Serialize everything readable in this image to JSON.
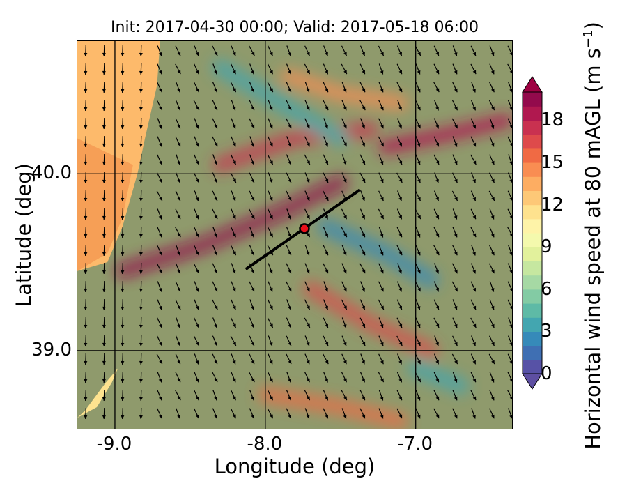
{
  "title": "Init: 2017-04-30 00:00; Valid: 2017-05-18 06:00",
  "map": {
    "xlabel": "Longitude (deg)",
    "ylabel": "Latitude (deg)",
    "xlim": [
      -9.25,
      -6.35
    ],
    "ylim": [
      38.55,
      40.75
    ],
    "x_ticks": [
      {
        "value": -9.0,
        "label": "-9.0"
      },
      {
        "value": -8.0,
        "label": "-8.0"
      },
      {
        "value": -7.0,
        "label": "-7.0"
      }
    ],
    "y_ticks": [
      {
        "value": 40.0,
        "label": "40.0"
      },
      {
        "value": 39.0,
        "label": "39.0"
      }
    ],
    "grid": true,
    "fill_colors": {
      "land": "#8f9a6c",
      "sea": "#fdba6b",
      "sea_dark": "#f59a52",
      "calm": "#fee38f"
    },
    "cross_section_line": {
      "start": [
        -8.13,
        39.46
      ],
      "end": [
        -7.37,
        39.91
      ]
    },
    "site_marker": {
      "lon": -7.74,
      "lat": 39.69,
      "color": "#e8101a"
    },
    "wind_arrow_color": "#000000",
    "high_wind_bands": [
      {
        "points": [
          [
            -8.95,
            39.45
          ],
          [
            -8.4,
            39.6
          ],
          [
            -7.9,
            39.78
          ],
          [
            -7.5,
            39.95
          ]
        ],
        "speed": 19
      },
      {
        "points": [
          [
            -8.3,
            40.05
          ],
          [
            -7.8,
            40.2
          ],
          [
            -7.3,
            40.25
          ]
        ],
        "speed": 17
      },
      {
        "points": [
          [
            -7.2,
            40.15
          ],
          [
            -6.8,
            40.22
          ],
          [
            -6.4,
            40.3
          ]
        ],
        "speed": 18
      },
      {
        "points": [
          [
            -7.85,
            40.55
          ],
          [
            -7.5,
            40.45
          ],
          [
            -7.1,
            40.4
          ]
        ],
        "speed": 14
      },
      {
        "points": [
          [
            -7.7,
            39.35
          ],
          [
            -7.3,
            39.15
          ],
          [
            -6.9,
            39.0
          ]
        ],
        "speed": 16
      },
      {
        "points": [
          [
            -8.0,
            38.75
          ],
          [
            -7.5,
            38.68
          ],
          [
            -7.1,
            38.6
          ]
        ],
        "speed": 15
      }
    ],
    "calm_bands": [
      {
        "points": [
          [
            -8.3,
            40.6
          ],
          [
            -7.9,
            40.4
          ],
          [
            -7.5,
            40.2
          ]
        ],
        "speed": 3
      },
      {
        "points": [
          [
            -7.6,
            39.7
          ],
          [
            -7.2,
            39.55
          ],
          [
            -6.9,
            39.4
          ]
        ],
        "speed": 2
      },
      {
        "points": [
          [
            -7.0,
            38.9
          ],
          [
            -6.7,
            38.8
          ]
        ],
        "speed": 3
      }
    ]
  },
  "colorbar": {
    "label_main": "Horizontal wind speed at 80 mAGL (m s",
    "label_exp": "−1",
    "label_close": ")",
    "min": 0,
    "max": 20,
    "step": 1,
    "extend": "both",
    "ticks": [
      "0",
      "3",
      "6",
      "9",
      "12",
      "15",
      "18"
    ],
    "tick_values": [
      0,
      3,
      6,
      9,
      12,
      15,
      18
    ],
    "colors": [
      "#5752a6",
      "#3f6fb3",
      "#368ab9",
      "#43a6b0",
      "#5ebaa6",
      "#83cba4",
      "#a6d9a4",
      "#c6e7a0",
      "#e2f19c",
      "#f4f9ad",
      "#fef3a8",
      "#fee28e",
      "#fdc877",
      "#fdad62",
      "#f98d52",
      "#f06a44",
      "#de4a4b",
      "#c93150",
      "#b0184f",
      "#930a4c"
    ],
    "under_color": "#5e4fa2",
    "over_color": "#9e0142"
  }
}
